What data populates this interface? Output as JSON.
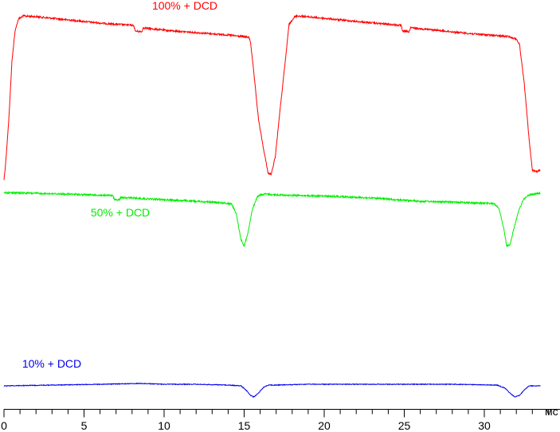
{
  "chart_data": {
    "type": "line",
    "title": "",
    "xlabel": "мс",
    "ylabel": "",
    "xlim": [
      0,
      35
    ],
    "x_ticks": [
      {
        "value": 0,
        "label": "0"
      },
      {
        "value": 5,
        "label": "5"
      },
      {
        "value": 10,
        "label": "10"
      },
      {
        "value": 15,
        "label": "15"
      },
      {
        "value": 20,
        "label": "20"
      },
      {
        "value": 25,
        "label": "25"
      },
      {
        "value": 30,
        "label": "30"
      }
    ],
    "minor_tick_step": 1,
    "grid": false,
    "series": [
      {
        "name": "100% + DCD",
        "color": "#ff0000",
        "noise": 0.5,
        "x": [
          0,
          0.1,
          0.3,
          0.5,
          0.7,
          0.9,
          1.2,
          2,
          4,
          6,
          8.1,
          8.2,
          8.6,
          8.7,
          10,
          12,
          14,
          15.3,
          15.4,
          15.6,
          15.9,
          16.2,
          16.5,
          16.7,
          16.95,
          17.2,
          17.6,
          17.8,
          18.1,
          18.3,
          20,
          22,
          24.8,
          24.9,
          25.3,
          25.4,
          27,
          29,
          31.5,
          32.0,
          32.2,
          32.5,
          32.8,
          33.0,
          33.3,
          33.5
        ],
        "y": [
          -110,
          -90,
          -35,
          40,
          78,
          92,
          96,
          95,
          91,
          87,
          84,
          77,
          76,
          81,
          78,
          75,
          72,
          69,
          63,
          25,
          -35,
          -70,
          -102,
          -103,
          -80,
          -30,
          45,
          85,
          94,
          96,
          93,
          89,
          84,
          77,
          76,
          81,
          78,
          74,
          70,
          67,
          60,
          10,
          -60,
          -98,
          -100,
          -98
        ]
      },
      {
        "name": "50% + DCD",
        "color": "#00ee00",
        "noise": 0.5,
        "x": [
          0,
          2,
          4,
          6.8,
          6.9,
          7.2,
          7.3,
          9,
          11,
          13,
          14.2,
          14.5,
          14.8,
          15.0,
          15.2,
          15.5,
          15.8,
          16.0,
          16.3,
          17,
          19,
          21,
          23,
          24.5,
          26,
          28,
          30.6,
          30.9,
          31.2,
          31.4,
          31.6,
          31.8,
          32.1,
          32.4,
          32.7,
          33.0,
          33.5
        ],
        "y": [
          44,
          43,
          42,
          40,
          35,
          35,
          38,
          36,
          34,
          32,
          30,
          18,
          -15,
          -23,
          -10,
          22,
          38,
          41,
          42,
          41,
          40,
          39,
          37,
          35,
          33,
          32,
          30,
          25,
          0,
          -23,
          -22,
          -5,
          18,
          34,
          40,
          42,
          43
        ]
      },
      {
        "name": "10% + DCD",
        "color": "#0000ee",
        "noise": 0.2,
        "x": [
          0,
          3,
          6,
          8.5,
          10,
          12,
          14,
          14.8,
          15.1,
          15.4,
          15.6,
          15.9,
          16.2,
          16.5,
          17,
          19,
          22,
          25,
          28,
          30.8,
          31.3,
          31.6,
          31.9,
          32.2,
          32.5,
          32.8,
          33.5
        ],
        "y": [
          -3,
          -2,
          -1,
          0,
          -1,
          -1,
          -2,
          -3,
          -8,
          -15,
          -17,
          -12,
          -5,
          -2,
          -2,
          -1,
          -1,
          -1,
          -1,
          -2,
          -6,
          -12,
          -17,
          -15,
          -8,
          -3,
          -3
        ]
      }
    ]
  }
}
